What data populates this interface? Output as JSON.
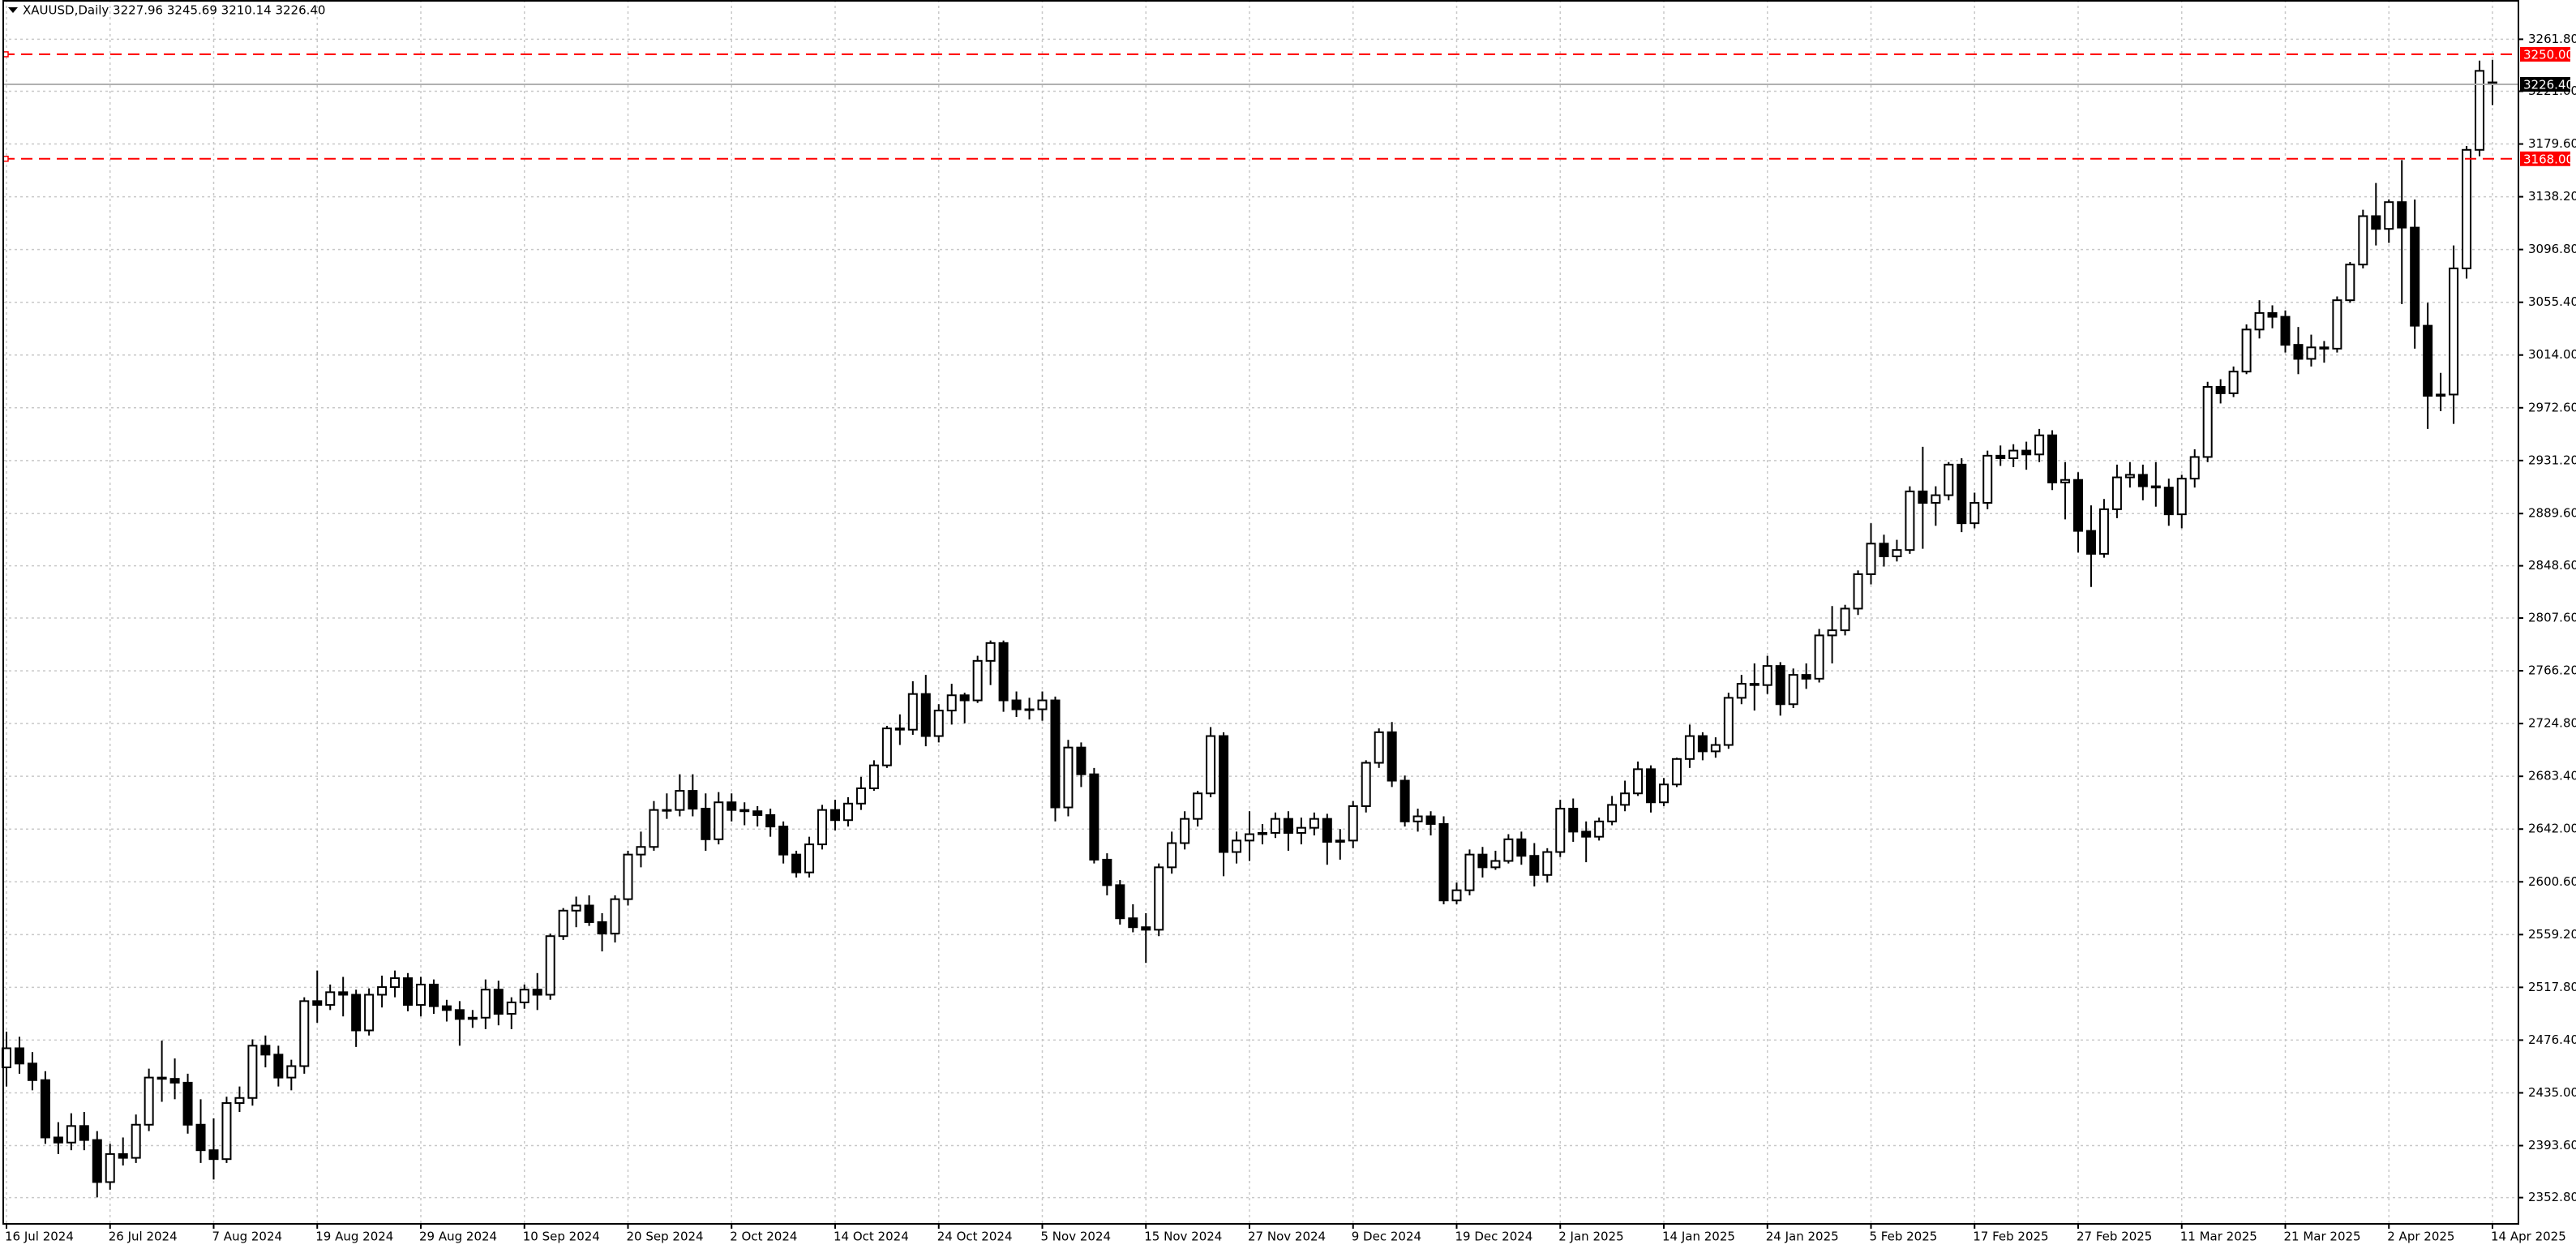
{
  "chart_data": {
    "type": "candlestick",
    "title": "XAUUSD,Daily  3227.96 3245.69 3210.14 3226.40",
    "categories": [
      "16 Jul 2024",
      null,
      null,
      null,
      null,
      null,
      null,
      null,
      "26 Jul 2024",
      null,
      null,
      null,
      null,
      null,
      null,
      null,
      "7 Aug 2024",
      null,
      null,
      null,
      null,
      null,
      null,
      null,
      "19 Aug 2024",
      null,
      null,
      null,
      null,
      null,
      null,
      null,
      "29 Aug 2024",
      null,
      null,
      null,
      null,
      null,
      null,
      null,
      "10 Sep 2024",
      null,
      null,
      null,
      null,
      null,
      null,
      null,
      "20 Sep 2024",
      null,
      null,
      null,
      null,
      null,
      null,
      null,
      "2 Oct 2024",
      null,
      null,
      null,
      null,
      null,
      null,
      null,
      "14 Oct 2024",
      null,
      null,
      null,
      null,
      null,
      null,
      null,
      "24 Oct 2024",
      null,
      null,
      null,
      null,
      null,
      null,
      null,
      "5 Nov 2024",
      null,
      null,
      null,
      null,
      null,
      null,
      null,
      "15 Nov 2024",
      null,
      null,
      null,
      null,
      null,
      null,
      null,
      "27 Nov 2024",
      null,
      null,
      null,
      null,
      null,
      null,
      null,
      "9 Dec 2024",
      null,
      null,
      null,
      null,
      null,
      null,
      null,
      "19 Dec 2024",
      null,
      null,
      null,
      null,
      null,
      null,
      null,
      "2 Jan 2025",
      null,
      null,
      null,
      null,
      null,
      null,
      null,
      "14 Jan 2025",
      null,
      null,
      null,
      null,
      null,
      null,
      null,
      "24 Jan 2025",
      null,
      null,
      null,
      null,
      null,
      null,
      null,
      "5 Feb 2025",
      null,
      null,
      null,
      null,
      null,
      null,
      null,
      "17 Feb 2025",
      null,
      null,
      null,
      null,
      null,
      null,
      null,
      "27 Feb 2025",
      null,
      null,
      null,
      null,
      null,
      null,
      null,
      "11 Mar 2025",
      null,
      null,
      null,
      null,
      null,
      null,
      null,
      "21 Mar 2025",
      null,
      null,
      null,
      null,
      null,
      null,
      null,
      "2 Apr 2025",
      null,
      null,
      null,
      null,
      null,
      null,
      null,
      "14 Apr 2025"
    ],
    "open": [
      2455,
      2470,
      2458,
      2445,
      2400,
      2396,
      2409,
      2398,
      2365,
      2387,
      2384,
      2410,
      2447,
      2446,
      2443,
      2410,
      2390,
      2383,
      2427,
      2431,
      2472,
      2465,
      2447,
      2456,
      2507,
      2504,
      2514,
      2512,
      2484,
      2512,
      2518,
      2525,
      2504,
      2520,
      2503,
      2500,
      2493,
      2494,
      2516,
      2497,
      2506,
      2516,
      2512,
      2558,
      2578,
      2582,
      2569,
      2560,
      2587,
      2622,
      2628,
      2657,
      2657,
      2672,
      2658,
      2634,
      2663,
      2657,
      2656,
      2653,
      2644,
      2622,
      2608,
      2630,
      2657,
      2649,
      2662,
      2674,
      2692,
      2721,
      2720,
      2748,
      2715,
      2735,
      2747,
      2743,
      2774,
      2788,
      2743,
      2736,
      2736,
      2743,
      2659,
      2706,
      2685,
      2618,
      2598,
      2572,
      2565,
      2563,
      2612,
      2631,
      2650,
      2670,
      2715,
      2624,
      2633,
      2638,
      2639,
      2650,
      2639,
      2643,
      2650,
      2632,
      2633,
      2660,
      2694,
      2718,
      2680,
      2648,
      2652,
      2646,
      2586,
      2594,
      2622,
      2612,
      2617,
      2634,
      2621,
      2606,
      2624,
      2658,
      2640,
      2636,
      2648,
      2661,
      2670,
      2689,
      2663,
      2677,
      2697,
      2715,
      2703,
      2708,
      2745,
      2756,
      2755,
      2770,
      2740,
      2763,
      2760,
      2794,
      2798,
      2815,
      2842,
      2866,
      2856,
      2861,
      2907,
      2898,
      2904,
      2928,
      2882,
      2898,
      2935,
      2933,
      2939,
      2936,
      2951,
      2914,
      2916,
      2876,
      2858,
      2893,
      2918,
      2920,
      2911,
      2910,
      2889,
      2917,
      2934,
      2989,
      2984,
      3001,
      3034,
      3047,
      3044,
      3022,
      3011,
      3020,
      3019,
      3057,
      3085,
      3123,
      3113,
      3134,
      3114,
      3037,
      2982,
      2983,
      3082,
      3175,
      3227.96
    ],
    "high": [
      2483,
      2479,
      2467,
      2452,
      2412,
      2419,
      2420,
      2405,
      2395,
      2400,
      2418,
      2454,
      2476,
      2462,
      2450,
      2430,
      2415,
      2432,
      2440,
      2477,
      2480,
      2472,
      2461,
      2510,
      2531,
      2520,
      2526,
      2516,
      2517,
      2527,
      2531,
      2529,
      2526,
      2524,
      2508,
      2507,
      2500,
      2524,
      2523,
      2510,
      2520,
      2529,
      2560,
      2580,
      2589,
      2590,
      2576,
      2590,
      2625,
      2640,
      2664,
      2670,
      2685,
      2685,
      2670,
      2671,
      2670,
      2663,
      2660,
      2658,
      2648,
      2625,
      2636,
      2661,
      2665,
      2667,
      2683,
      2696,
      2723,
      2732,
      2758,
      2763,
      2740,
      2756,
      2749,
      2778,
      2790,
      2790,
      2750,
      2745,
      2750,
      2746,
      2712,
      2710,
      2690,
      2623,
      2602,
      2583,
      2576,
      2615,
      2640,
      2656,
      2672,
      2722,
      2718,
      2640,
      2656,
      2646,
      2655,
      2656,
      2651,
      2655,
      2654,
      2642,
      2664,
      2696,
      2721,
      2726,
      2684,
      2658,
      2656,
      2652,
      2600,
      2626,
      2628,
      2625,
      2638,
      2640,
      2631,
      2627,
      2665,
      2666,
      2648,
      2651,
      2668,
      2680,
      2695,
      2692,
      2682,
      2698,
      2724,
      2718,
      2714,
      2749,
      2763,
      2772,
      2778,
      2773,
      2768,
      2772,
      2799,
      2817,
      2818,
      2845,
      2882,
      2873,
      2869,
      2911,
      2942,
      2911,
      2930,
      2933,
      2906,
      2939,
      2943,
      2944,
      2946,
      2956,
      2955,
      2930,
      2922,
      2896,
      2901,
      2928,
      2930,
      2928,
      2930,
      2917,
      2920,
      2940,
      2993,
      2995,
      3005,
      3038,
      3057,
      3053,
      3049,
      3036,
      3030,
      3025,
      3060,
      3087,
      3128,
      3149,
      3136,
      3167,
      3136,
      3055,
      3000,
      3100,
      3178,
      3245,
      3245.69
    ],
    "low": [
      2440,
      2450,
      2437,
      2395,
      2387,
      2390,
      2390,
      2353,
      2359,
      2378,
      2380,
      2405,
      2428,
      2430,
      2403,
      2380,
      2367,
      2380,
      2420,
      2425,
      2455,
      2440,
      2437,
      2450,
      2490,
      2500,
      2495,
      2471,
      2480,
      2502,
      2510,
      2499,
      2495,
      2497,
      2491,
      2472,
      2486,
      2485,
      2488,
      2485,
      2501,
      2500,
      2508,
      2555,
      2565,
      2566,
      2546,
      2553,
      2582,
      2612,
      2625,
      2650,
      2652,
      2652,
      2625,
      2630,
      2648,
      2645,
      2644,
      2636,
      2615,
      2604,
      2604,
      2626,
      2641,
      2644,
      2657,
      2672,
      2690,
      2708,
      2716,
      2707,
      2710,
      2724,
      2725,
      2741,
      2755,
      2734,
      2730,
      2728,
      2727,
      2648,
      2652,
      2675,
      2615,
      2590,
      2567,
      2561,
      2537,
      2558,
      2607,
      2626,
      2644,
      2667,
      2605,
      2615,
      2617,
      2630,
      2635,
      2625,
      2630,
      2637,
      2614,
      2618,
      2627,
      2655,
      2690,
      2675,
      2644,
      2640,
      2637,
      2583,
      2583,
      2590,
      2604,
      2610,
      2615,
      2614,
      2597,
      2600,
      2620,
      2632,
      2616,
      2633,
      2645,
      2656,
      2668,
      2655,
      2660,
      2675,
      2690,
      2696,
      2698,
      2705,
      2740,
      2735,
      2748,
      2731,
      2737,
      2752,
      2757,
      2772,
      2794,
      2810,
      2834,
      2848,
      2852,
      2858,
      2862,
      2880,
      2900,
      2875,
      2878,
      2893,
      2927,
      2926,
      2924,
      2930,
      2908,
      2885,
      2859,
      2832,
      2855,
      2886,
      2910,
      2900,
      2895,
      2880,
      2878,
      2910,
      2930,
      2976,
      2981,
      2999,
      3027,
      3035,
      3016,
      2999,
      3005,
      3008,
      3016,
      3055,
      3082,
      3100,
      3102,
      3054,
      3019,
      2956,
      2970,
      2960,
      3074,
      3170,
      3210.14
    ],
    "close": [
      2470,
      2458,
      2445,
      2400,
      2396,
      2409,
      2398,
      2365,
      2387,
      2384,
      2410,
      2447,
      2446,
      2443,
      2410,
      2390,
      2383,
      2427,
      2431,
      2472,
      2465,
      2447,
      2456,
      2507,
      2504,
      2514,
      2512,
      2484,
      2512,
      2518,
      2525,
      2504,
      2520,
      2503,
      2500,
      2493,
      2494,
      2516,
      2497,
      2506,
      2516,
      2512,
      2558,
      2578,
      2582,
      2569,
      2560,
      2587,
      2622,
      2628,
      2657,
      2657,
      2672,
      2658,
      2634,
      2663,
      2657,
      2656,
      2653,
      2644,
      2622,
      2608,
      2630,
      2657,
      2649,
      2662,
      2674,
      2692,
      2721,
      2720,
      2748,
      2715,
      2735,
      2747,
      2743,
      2774,
      2788,
      2743,
      2736,
      2736,
      2743,
      2659,
      2706,
      2685,
      2618,
      2598,
      2572,
      2565,
      2563,
      2612,
      2631,
      2650,
      2670,
      2715,
      2624,
      2633,
      2638,
      2639,
      2650,
      2639,
      2643,
      2650,
      2632,
      2633,
      2660,
      2694,
      2718,
      2680,
      2648,
      2652,
      2646,
      2586,
      2594,
      2622,
      2612,
      2617,
      2634,
      2621,
      2606,
      2624,
      2658,
      2640,
      2636,
      2648,
      2661,
      2670,
      2689,
      2663,
      2677,
      2697,
      2715,
      2703,
      2708,
      2745,
      2756,
      2755,
      2770,
      2740,
      2763,
      2760,
      2794,
      2798,
      2815,
      2842,
      2866,
      2856,
      2861,
      2907,
      2898,
      2904,
      2928,
      2882,
      2898,
      2935,
      2933,
      2939,
      2936,
      2951,
      2914,
      2916,
      2876,
      2858,
      2893,
      2918,
      2920,
      2911,
      2910,
      2889,
      2917,
      2934,
      2989,
      2984,
      3001,
      3034,
      3047,
      3044,
      3022,
      3011,
      3020,
      3019,
      3057,
      3085,
      3123,
      3113,
      3134,
      3114,
      3037,
      2982,
      2983,
      3082,
      3175,
      3237,
      3226.4
    ],
    "up_color": "#ffffff",
    "down_color": "#000000",
    "outline_color": "#000000",
    "ylim": [
      2332.2,
      3292.6
    ],
    "yticks": [
      {
        "value": 2352.8,
        "label": "2352.80"
      },
      {
        "value": 2393.6,
        "label": "2393.60"
      },
      {
        "value": 2435.0,
        "label": "2435.00"
      },
      {
        "value": 2476.4,
        "label": "2476.40"
      },
      {
        "value": 2517.8,
        "label": "2517.80"
      },
      {
        "value": 2559.2,
        "label": "2559.20"
      },
      {
        "value": 2600.6,
        "label": "2600.60"
      },
      {
        "value": 2642.0,
        "label": "2642.00"
      },
      {
        "value": 2683.4,
        "label": "2683.40"
      },
      {
        "value": 2724.8,
        "label": "2724.80"
      },
      {
        "value": 2766.2,
        "label": "2766.20"
      },
      {
        "value": 2807.6,
        "label": "2807.60"
      },
      {
        "value": 2848.6,
        "label": "2848.60"
      },
      {
        "value": 2889.6,
        "label": "2889.60"
      },
      {
        "value": 2931.2,
        "label": "2931.20"
      },
      {
        "value": 2972.6,
        "label": "2972.60"
      },
      {
        "value": 3014.0,
        "label": "3014.00"
      },
      {
        "value": 3055.4,
        "label": "3055.40"
      },
      {
        "value": 3096.8,
        "label": "3096.80"
      },
      {
        "value": 3138.2,
        "label": "3138.20"
      },
      {
        "value": 3179.6,
        "label": "3179.60"
      },
      {
        "value": 3221.0,
        "label": "3221.00"
      },
      {
        "value": 3261.8,
        "label": "3261.80"
      }
    ],
    "grid": true,
    "levels": [
      {
        "value": 3250,
        "label": "3250.00",
        "color": "#ff0000"
      },
      {
        "value": 3168,
        "label": "3168.00",
        "color": "#ff0000"
      }
    ],
    "last_price": {
      "value": 3226.4,
      "label": "3226.40",
      "color": "#000000"
    }
  }
}
